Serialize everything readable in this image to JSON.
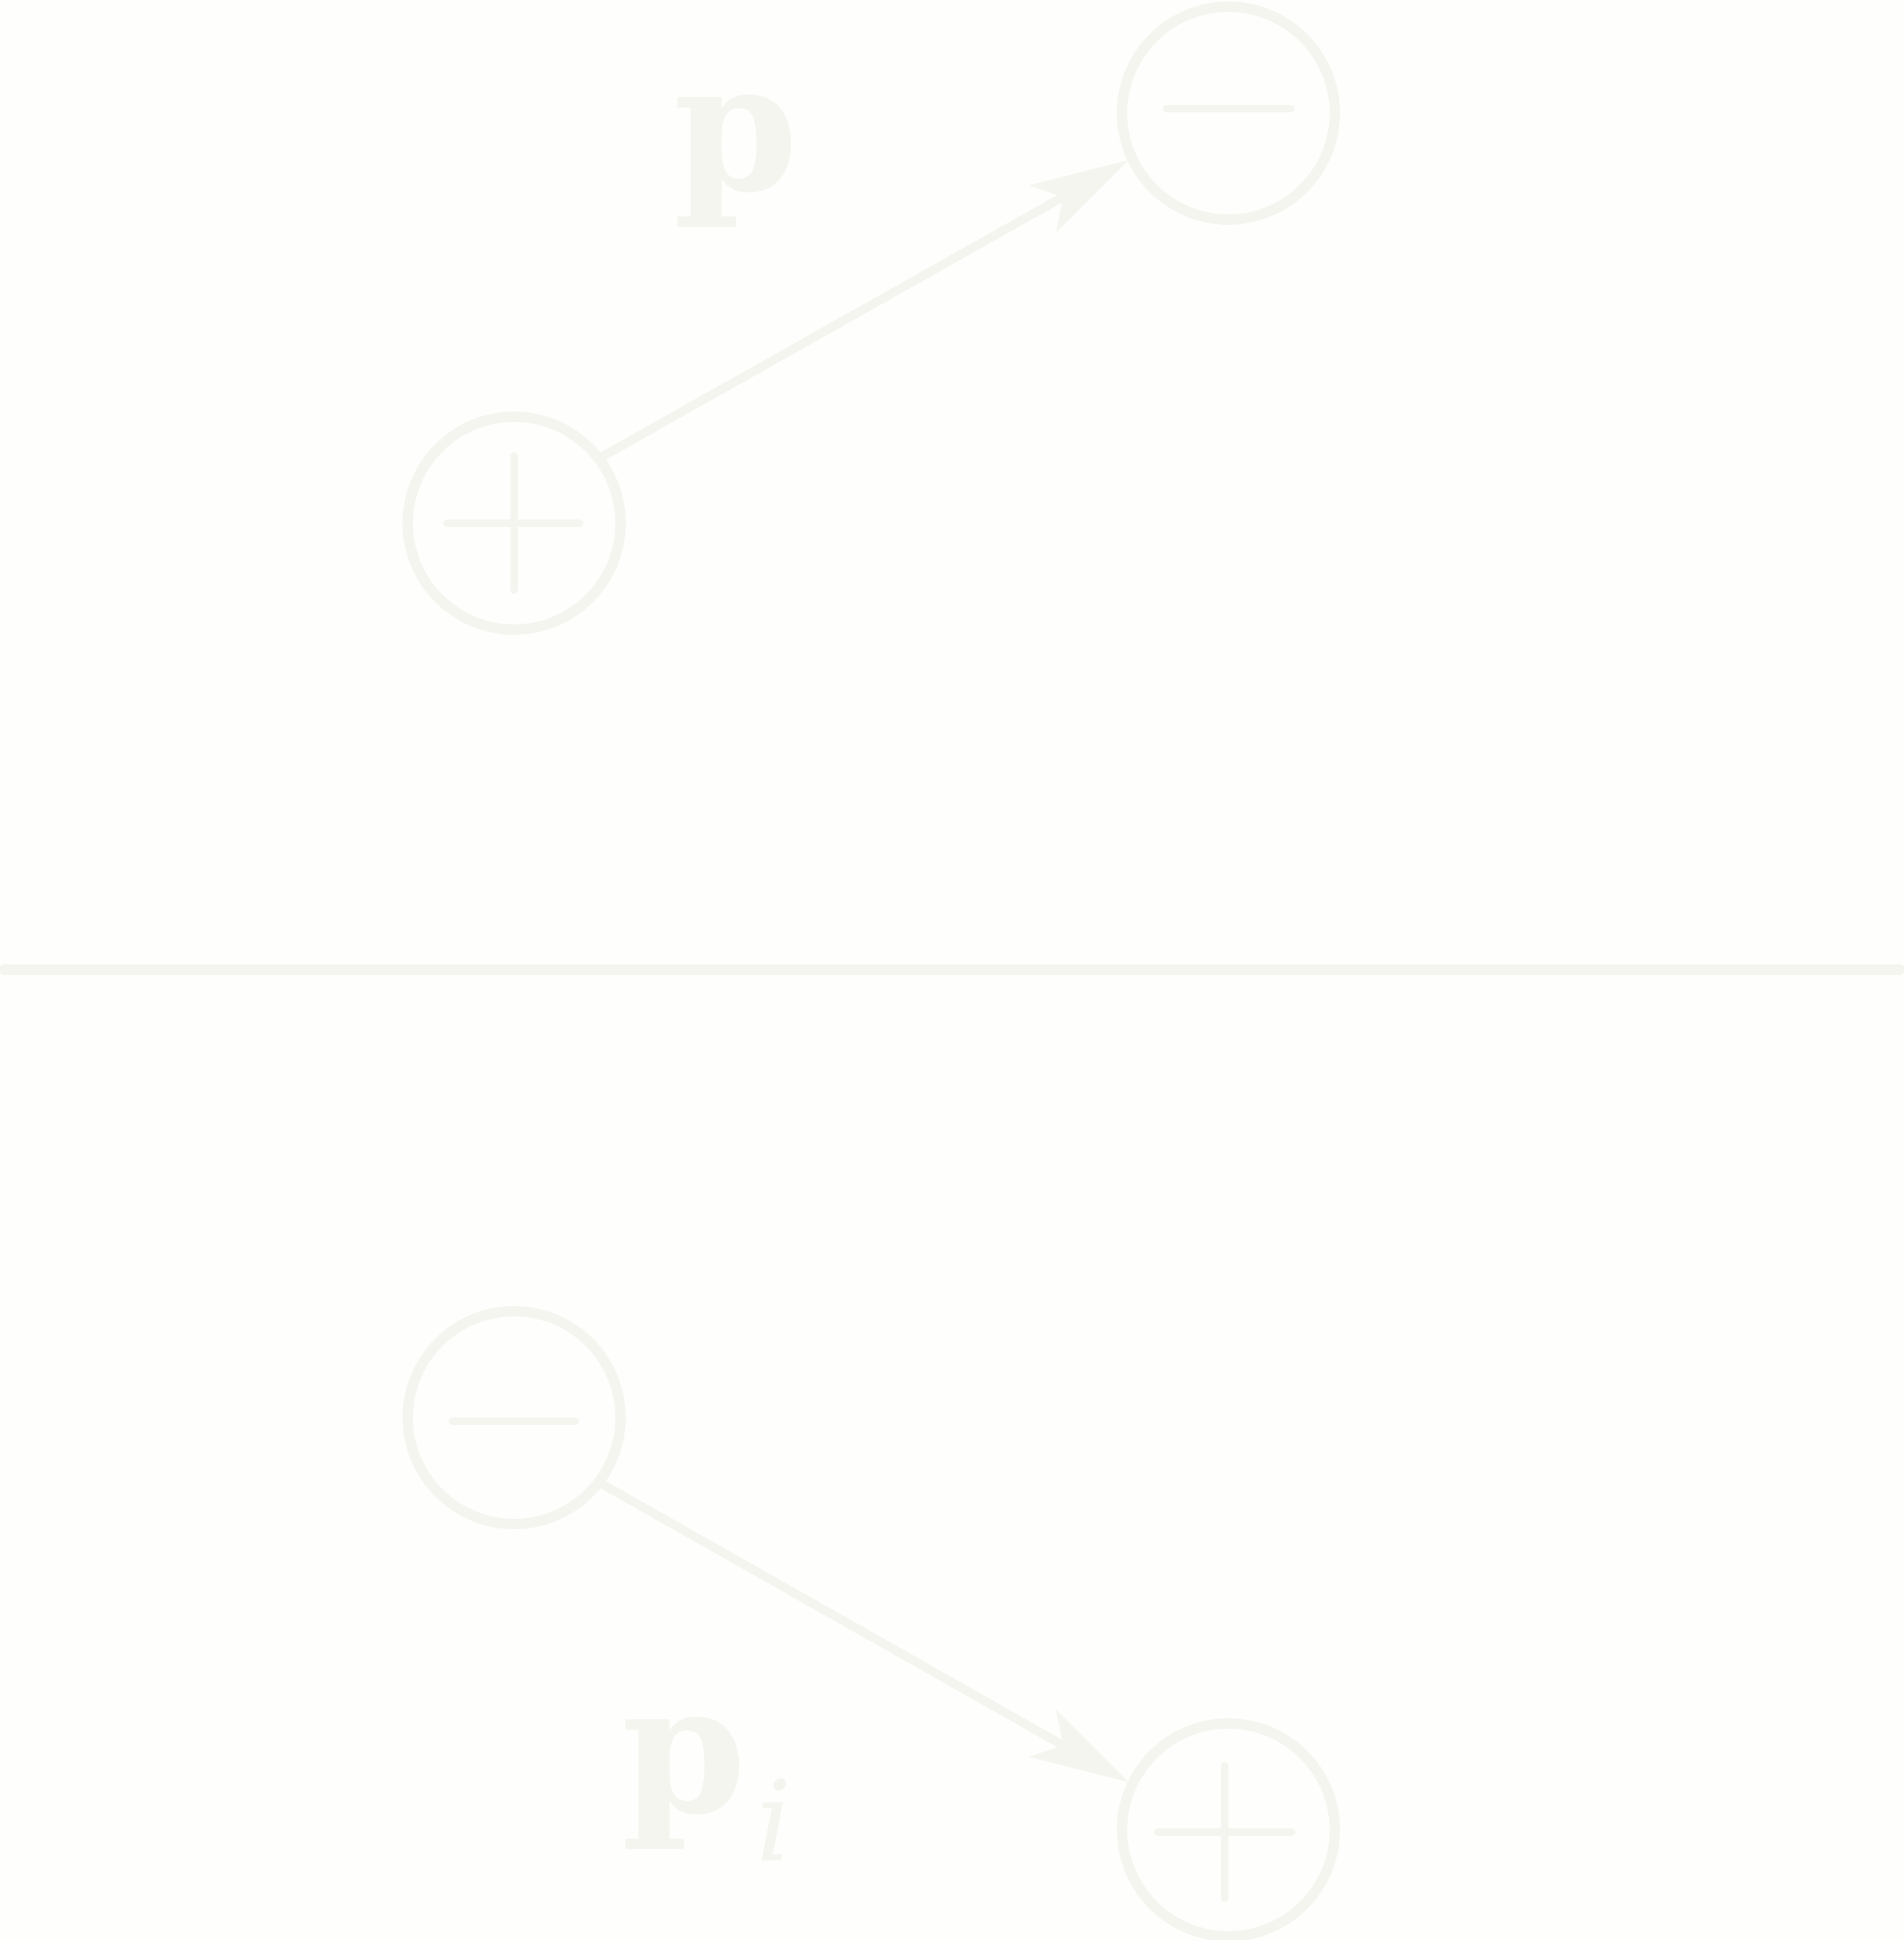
{
  "diagram": {
    "colors": {
      "background": "#fefefd",
      "ink": "#f4f5ee"
    },
    "upper_dipole": {
      "label": "p",
      "tail_charge": "+",
      "head_charge": "−"
    },
    "separator": "horizontal-line",
    "lower_dipole": {
      "label": "p",
      "label_subscript": "i",
      "tail_charge": "−",
      "head_charge": "+"
    }
  }
}
